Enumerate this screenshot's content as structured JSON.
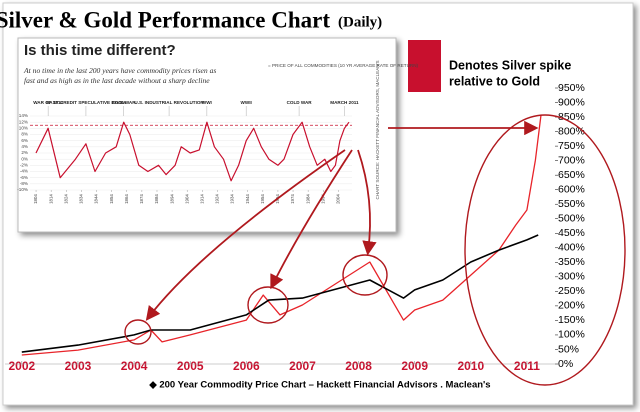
{
  "chart_data": [
    {
      "type": "line",
      "title": "Silver & Gold Performance Chart",
      "subtitle": "(Daily)",
      "legend_note": [
        "Denotes Silver spike",
        "relative to Gold"
      ],
      "footer": "◆ 200 Year Commodity Price Chart – Hackett Financial Advisors . Maclean's",
      "xlim": [
        2001.7,
        2011.5
      ],
      "xticks": [
        2002,
        2003,
        2004,
        2005,
        2006,
        2007,
        2008,
        2009,
        2010,
        2011
      ],
      "ylim": [
        0,
        950
      ],
      "yticks": [
        {
          "value": 0,
          "label": "0%"
        },
        {
          "value": 50,
          "label": "50%"
        },
        {
          "value": 100,
          "label": "100%"
        },
        {
          "value": 150,
          "label": "150%"
        },
        {
          "value": 200,
          "label": "200%"
        },
        {
          "value": 250,
          "label": "250%"
        },
        {
          "value": 300,
          "label": "300%"
        },
        {
          "value": 350,
          "label": "350%"
        },
        {
          "value": 400,
          "label": "400%"
        },
        {
          "value": 450,
          "label": "450%"
        },
        {
          "value": 500,
          "label": "500%"
        },
        {
          "value": 550,
          "label": "550%"
        },
        {
          "value": 600,
          "label": "600%"
        },
        {
          "value": 650,
          "label": "650%"
        },
        {
          "value": 700,
          "label": "700%"
        },
        {
          "value": 750,
          "label": "750%"
        },
        {
          "value": 800,
          "label": "800%"
        },
        {
          "value": 850,
          "label": "850%"
        },
        {
          "value": 900,
          "label": "900%"
        },
        {
          "value": 950,
          "label": "950%"
        }
      ],
      "series": [
        {
          "color": "#e8242a",
          "x": [
            2002.0,
            2003.0,
            2004.0,
            2004.3,
            2004.5,
            2005.0,
            2006.0,
            2006.3,
            2006.6,
            2007.0,
            2008.2,
            2008.8,
            2009.0,
            2009.5,
            2010.0,
            2010.5,
            2010.8,
            2011.0,
            2011.15,
            2011.25
          ],
          "values": [
            31,
            48,
            83,
            117,
            76,
            100,
            151,
            237,
            169,
            203,
            351,
            151,
            186,
            220,
            306,
            392,
            478,
            530,
            702,
            857
          ]
        },
        {
          "color": "#000000",
          "x": [
            2002.0,
            2003.0,
            2004.0,
            2004.3,
            2005.0,
            2006.0,
            2006.4,
            2007.0,
            2008.2,
            2008.8,
            2009.0,
            2009.5,
            2010.0,
            2010.5,
            2011.0,
            2011.2
          ],
          "values": [
            41,
            65,
            100,
            117,
            117,
            169,
            220,
            227,
            289,
            227,
            255,
            289,
            351,
            392,
            427,
            444
          ]
        }
      ]
    },
    {
      "type": "line",
      "title": "Is this time different?",
      "subtitle": [
        "At no time in the last 200 years have commodity prices risen as",
        "fast and as high as in the last decade without a sharp decline"
      ],
      "source": "CHART SOURCE: HACKETT FINANCIAL ADVISORS, MACLEAN'S",
      "xlim": [
        1800,
        2013
      ],
      "xticks": [
        1804,
        1814,
        1824,
        1834,
        1844,
        1854,
        1864,
        1874,
        1884,
        1894,
        1904,
        1914,
        1924,
        1934,
        1944,
        1954,
        1964,
        1974,
        1984,
        1994,
        2004
      ],
      "ylim": [
        -10,
        14
      ],
      "yticks": [
        {
          "value": 14,
          "label": "14%"
        },
        {
          "value": 12,
          "label": "12%"
        },
        {
          "value": 10,
          "label": "10%"
        },
        {
          "value": 8,
          "label": "8%"
        },
        {
          "value": 6,
          "label": "6%"
        },
        {
          "value": 4,
          "label": "4%"
        },
        {
          "value": 2,
          "label": "2%"
        },
        {
          "value": 0,
          "label": "0%"
        },
        {
          "value": -2,
          "label": "-2%"
        },
        {
          "value": -4,
          "label": "-4%"
        },
        {
          "value": -6,
          "label": "-6%"
        },
        {
          "value": -8,
          "label": "-8%"
        },
        {
          "value": -10,
          "label": "-10%"
        }
      ],
      "reference_line": 11,
      "events": [
        {
          "label": "WAR OF 1812",
          "x": 1812
        },
        {
          "label": "EASY CREDIT SPECULATIVE BOOM",
          "x": 1837
        },
        {
          "label": "CIVIL WAR",
          "x": 1862
        },
        {
          "label": "U.S. INDUSTRIAL REVOLUTION",
          "x": 1892
        },
        {
          "label": "WWI",
          "x": 1917
        },
        {
          "label": "WWII",
          "x": 1943
        },
        {
          "label": "COLD WAR",
          "x": 1978
        },
        {
          "label": "MARCH 2011",
          "x": 2008
        }
      ],
      "series": [
        {
          "name": "= PRICE OF ALL COMMODITIES (10 YR AVERAGE RATE OF RETURN)",
          "color": "#c8102e",
          "x": [
            1804,
            1812,
            1820,
            1830,
            1837,
            1843,
            1850,
            1857,
            1862,
            1866,
            1872,
            1878,
            1885,
            1890,
            1896,
            1900,
            1906,
            1912,
            1917,
            1922,
            1928,
            1933,
            1938,
            1943,
            1948,
            1953,
            1958,
            1964,
            1968,
            1974,
            1980,
            1985,
            1990,
            1995,
            1999,
            2002,
            2005,
            2008,
            2011
          ],
          "values": [
            2,
            10,
            -6,
            0,
            5,
            -4,
            2,
            4,
            12,
            8,
            -2,
            -4,
            -2,
            -5,
            -2,
            4,
            2,
            3,
            12,
            4,
            0,
            -7,
            -2,
            6,
            10,
            4,
            0,
            -2,
            0,
            8,
            12,
            4,
            -2,
            0,
            -4,
            -2,
            6,
            10,
            12
          ]
        }
      ]
    }
  ]
}
